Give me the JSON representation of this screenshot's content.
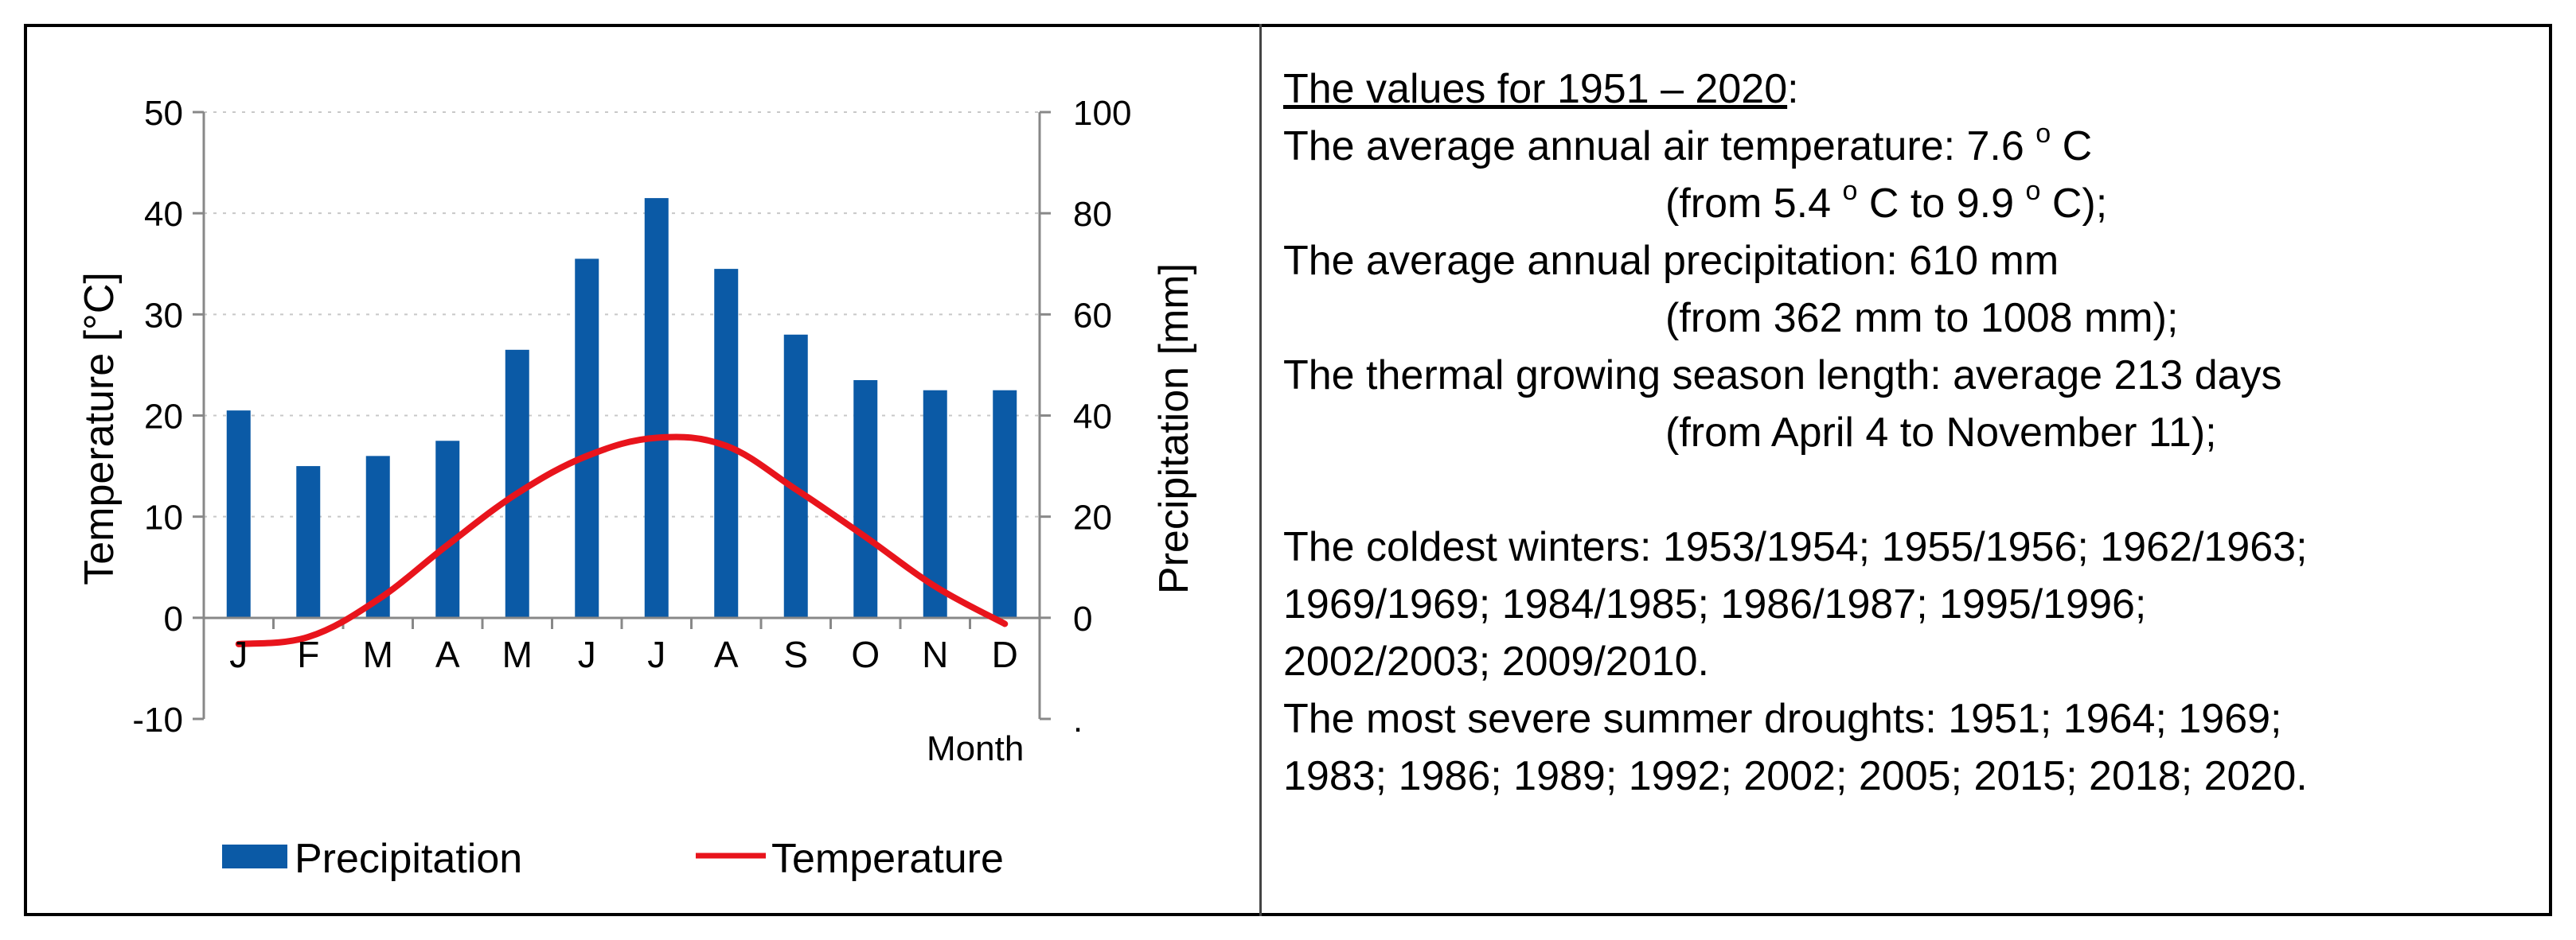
{
  "chart_data": {
    "type": "bar+line",
    "categories": [
      "J",
      "F",
      "M",
      "A",
      "M",
      "J",
      "J",
      "A",
      "S",
      "O",
      "N",
      "D"
    ],
    "series": [
      {
        "name": "Precipitation",
        "type": "bar",
        "axis": "right",
        "color": "#0b5aa6",
        "values": [
          41,
          30,
          32,
          35,
          53,
          71,
          83,
          69,
          56,
          47,
          45,
          45
        ]
      },
      {
        "name": "Temperature",
        "type": "line",
        "axis": "left",
        "color": "#e8141c",
        "values": [
          -2.6,
          -1.9,
          1.8,
          7.2,
          12.3,
          16.0,
          17.8,
          17.0,
          12.7,
          8.0,
          3.1,
          -0.6
        ]
      }
    ],
    "ylabel_left": "Temperature [°C]",
    "ylabel_right": "Precipitation [mm]",
    "xlabel": "Month",
    "ylim_left": [
      -10,
      50
    ],
    "ylim_right": [
      -20,
      100
    ],
    "yticks_left": [
      "50",
      "40",
      "30",
      "20",
      "10",
      "0",
      "-10"
    ],
    "yticks_right": [
      "100",
      "80",
      "60",
      "40",
      "20",
      "0",
      "."
    ],
    "grid": "dotted horizontal",
    "legend_position": "bottom"
  },
  "info": {
    "title": "The values for 1951 – 2020",
    "title_suffix": ":",
    "temp_label": "The average annual air temperature: 7.6",
    "temp_deg": "o",
    "temp_unit": " C",
    "temp_range_a": "(from 5.4",
    "temp_range_deg1": "o",
    "temp_range_b": " C to 9.9",
    "temp_range_deg2": "o",
    "temp_range_c": " C);",
    "precip": "The average annual precipitation: 610 mm",
    "precip_range": "(from 362 mm to 1008 mm);",
    "season": "The thermal growing season length: average 213 days",
    "season_range": "(from April 4 to November 11);",
    "winters_1": "The coldest winters: 1953/1954; 1955/1956; 1962/1963;",
    "winters_2": "1969/1969; 1984/1985; 1986/1987; 1995/1996;",
    "winters_3": "2002/2003; 2009/2010.",
    "droughts_1": "The most severe summer droughts: 1951; 1964; 1969;",
    "droughts_2": "1983; 1986; 1989; 1992; 2002; 2005; 2015; 2018; 2020."
  }
}
